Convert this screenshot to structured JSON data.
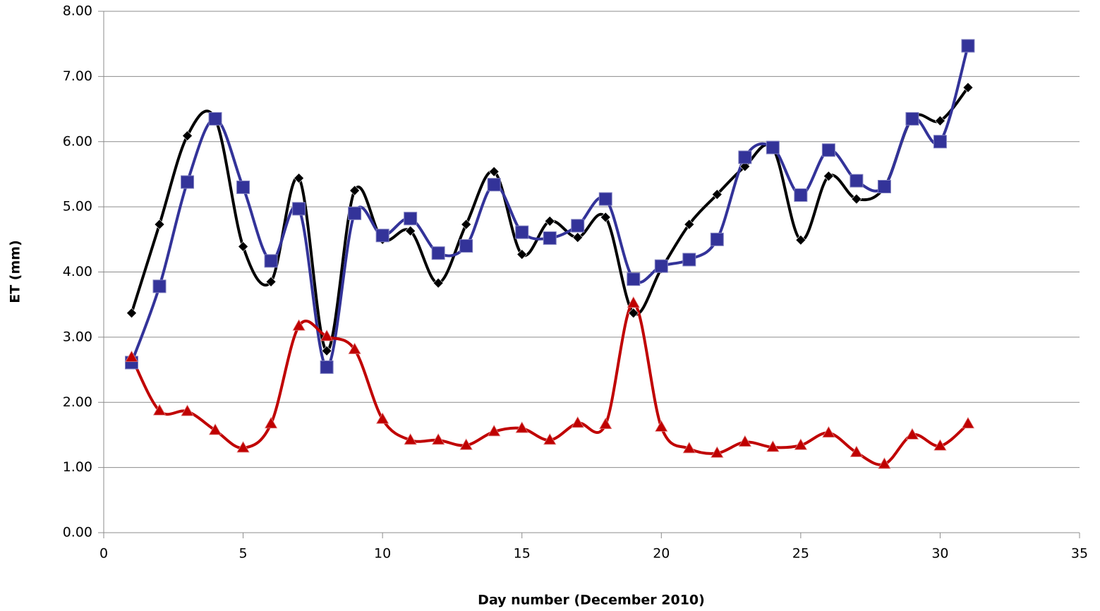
{
  "chart_data": {
    "type": "line",
    "xlabel": "Day number (December 2010)",
    "ylabel": "ET (mm)",
    "x": [
      1,
      2,
      3,
      4,
      5,
      6,
      7,
      8,
      9,
      10,
      11,
      12,
      13,
      14,
      15,
      16,
      17,
      18,
      19,
      20,
      21,
      22,
      23,
      24,
      25,
      26,
      27,
      28,
      29,
      30,
      31
    ],
    "series": [
      {
        "color": "#000000",
        "marker": "diamond",
        "values": [
          3.37,
          4.73,
          6.09,
          6.35,
          4.39,
          3.85,
          5.44,
          2.79,
          5.25,
          4.5,
          4.63,
          3.83,
          4.73,
          5.54,
          4.27,
          4.78,
          4.53,
          4.84,
          3.37,
          4.05,
          4.73,
          5.19,
          5.62,
          5.9,
          4.49,
          5.47,
          5.12,
          5.3,
          6.36,
          6.32,
          6.83
        ]
      },
      {
        "color": "#333399",
        "marker": "square",
        "values": [
          2.61,
          3.78,
          5.38,
          6.35,
          5.3,
          4.17,
          4.97,
          2.54,
          4.9,
          4.56,
          4.82,
          4.29,
          4.4,
          5.34,
          4.61,
          4.52,
          4.71,
          5.12,
          3.89,
          4.09,
          4.19,
          4.5,
          5.76,
          5.91,
          5.18,
          5.87,
          5.4,
          5.31,
          6.35,
          6.0,
          7.47
        ]
      },
      {
        "color": "#c00000",
        "marker": "triangle",
        "values": [
          2.69,
          1.87,
          1.86,
          1.57,
          1.3,
          1.67,
          3.17,
          3.01,
          2.81,
          1.74,
          1.42,
          1.42,
          1.34,
          1.55,
          1.6,
          1.42,
          1.68,
          1.66,
          3.52,
          1.62,
          1.29,
          1.22,
          1.39,
          1.31,
          1.34,
          1.53,
          1.23,
          1.05,
          1.5,
          1.33,
          1.67
        ]
      }
    ],
    "xlim": [
      0,
      35
    ],
    "xticks": [
      0,
      5,
      10,
      15,
      20,
      25,
      30,
      35
    ],
    "ylim": [
      0,
      8
    ],
    "yticks": [
      {
        "value": 0,
        "label": "0.00"
      },
      {
        "value": 1,
        "label": "1.00"
      },
      {
        "value": 2,
        "label": "2.00"
      },
      {
        "value": 3,
        "label": "3.00"
      },
      {
        "value": 4,
        "label": "4.00"
      },
      {
        "value": 5,
        "label": "5.00"
      },
      {
        "value": 6,
        "label": "6.00"
      },
      {
        "value": 7,
        "label": "7.00"
      },
      {
        "value": 8,
        "label": "8.00"
      }
    ],
    "grid": true,
    "smooth": true
  }
}
